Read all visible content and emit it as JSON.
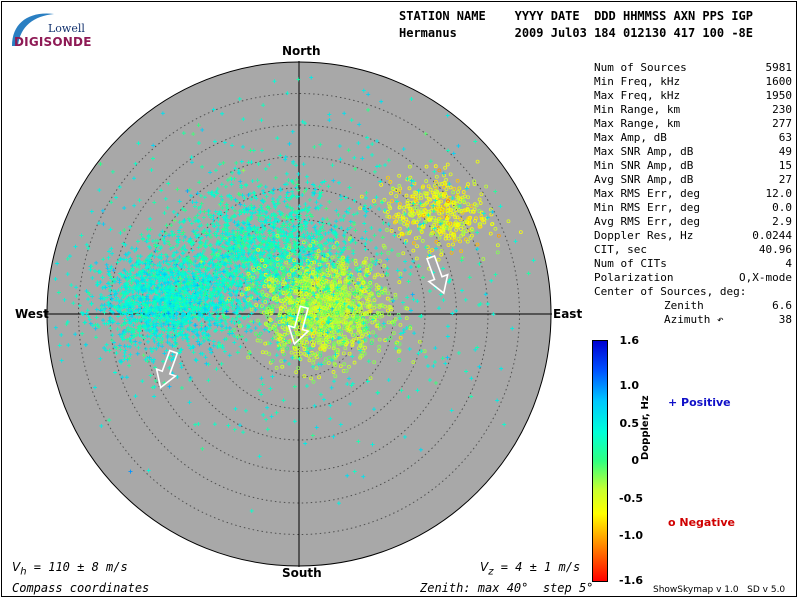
{
  "logo": {
    "top": "Lowell",
    "bottom": "DIGISONDE"
  },
  "header": {
    "row1": "STATION NAME    YYYY DATE  DDD HHMMSS AXN PPS IGP",
    "row2": "Hermanus        2009 Jul03 184 012130 417 100 -8E"
  },
  "stats": [
    {
      "label": "Num of Sources",
      "value": "5981"
    },
    {
      "label": "Min Freq, kHz",
      "value": "1600"
    },
    {
      "label": "Max Freq, kHz",
      "value": "1950"
    },
    {
      "label": "Min Range, km",
      "value": "230"
    },
    {
      "label": "Max Range, km",
      "value": "277"
    },
    {
      "label": "Max Amp, dB",
      "value": "63"
    },
    {
      "label": "Max SNR Amp, dB",
      "value": "49"
    },
    {
      "label": "Min SNR Amp, dB",
      "value": "15"
    },
    {
      "label": "Avg SNR Amp, dB",
      "value": "27"
    },
    {
      "label": "Max RMS Err, deg",
      "value": "12.0"
    },
    {
      "label": "Min RMS Err, deg",
      "value": "0.0"
    },
    {
      "label": "Avg RMS Err, deg",
      "value": "2.9"
    },
    {
      "label": "Doppler Res, Hz",
      "value": "0.0244"
    },
    {
      "label": "CIT, sec",
      "value": "40.96"
    },
    {
      "label": "Num of CITs",
      "value": "4"
    },
    {
      "label": "Polarization",
      "value": "O,X-mode"
    },
    {
      "label": "Center of Sources, deg:",
      "value": ""
    },
    {
      "label": "Zenith",
      "value": "6.6",
      "sub": true
    },
    {
      "label": "Azimuth ↶",
      "value": "38",
      "sub": true
    }
  ],
  "directions": {
    "north": "North",
    "south": "South",
    "east": "East",
    "west": "West"
  },
  "footer": {
    "vh": "V",
    "vh_sub": "h",
    "vh_rest": " = 110 ± 8 m/s",
    "vz": "V",
    "vz_sub": "z",
    "vz_rest": " = 4 ± 1 m/s",
    "coords": "Compass coordinates",
    "zenith": "Zenith: max 40°  step 5°",
    "version": "ShowSkymap v 1.0   SD v 5.0"
  },
  "colorbar": {
    "title": "Doppler, Hz",
    "ticks": [
      "1.6",
      "1.0",
      "0.5",
      "0",
      "-0.5",
      "-1.0",
      "-1.6"
    ],
    "min": -1.6,
    "max": 1.6
  },
  "legend": {
    "positive": "+ Positive",
    "negative": "o Negative",
    "positive_color": "#1010c8",
    "negative_color": "#d00000"
  },
  "colors": {
    "plot_bg": "#a8a8a8",
    "ring": "#505050",
    "arrow": "#ffffff"
  },
  "chart_data": {
    "type": "scatter",
    "title": "",
    "projection": "polar skymap",
    "r_max_deg": 40,
    "ring_step_deg": 5,
    "clusters": [
      {
        "marker": "+",
        "sign": "positive",
        "center_east_deg": -21,
        "center_north_deg": 2,
        "spread_east_deg": 6,
        "spread_north_deg": 4,
        "doppler_hz": 0.45,
        "count": 1800
      },
      {
        "marker": "+",
        "sign": "positive",
        "center_east_deg": -6,
        "center_north_deg": 10,
        "spread_east_deg": 7,
        "spread_north_deg": 5,
        "doppler_hz": 0.3,
        "count": 1500
      },
      {
        "marker": "o",
        "sign": "negative",
        "center_east_deg": 4,
        "center_north_deg": 1,
        "spread_east_deg": 5,
        "spread_north_deg": 4,
        "doppler_hz": -0.35,
        "count": 1500
      },
      {
        "marker": "o",
        "sign": "negative",
        "center_east_deg": 22,
        "center_north_deg": 16,
        "spread_east_deg": 4,
        "spread_north_deg": 3,
        "doppler_hz": -0.6,
        "count": 450
      },
      {
        "marker": "+",
        "sign": "positive",
        "center_east_deg": 0,
        "center_north_deg": 8,
        "spread_east_deg": 18,
        "spread_north_deg": 14,
        "doppler_hz": 0.4,
        "count": 730
      }
    ],
    "velocity_arrows": [
      {
        "east_deg": 22,
        "north_deg": 6,
        "azimuth_deg": 160
      },
      {
        "east_deg": 0,
        "north_deg": -2,
        "azimuth_deg": 195
      },
      {
        "east_deg": -21,
        "north_deg": -9,
        "azimuth_deg": 200
      }
    ]
  }
}
